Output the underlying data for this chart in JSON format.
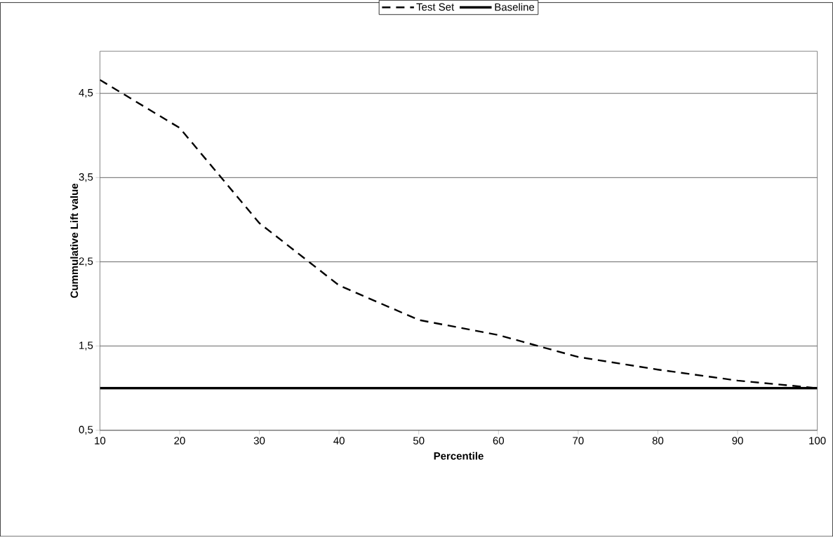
{
  "chart_data": {
    "type": "line",
    "xlabel": "Percentile",
    "ylabel": "Cummulative Lift value",
    "x": [
      10,
      20,
      30,
      40,
      50,
      60,
      70,
      80,
      90,
      100
    ],
    "series": [
      {
        "name": "Test Set",
        "color": "#000000",
        "line_style": "dashed",
        "values": [
          4.66,
          4.09,
          2.96,
          2.22,
          1.81,
          1.63,
          1.37,
          1.22,
          1.09,
          1.0
        ]
      },
      {
        "name": "Baseline",
        "color": "#000000",
        "line_style": "solid",
        "values": [
          1.0,
          1.0,
          1.0,
          1.0,
          1.0,
          1.0,
          1.0,
          1.0,
          1.0,
          1.0
        ]
      }
    ],
    "xlim": [
      10,
      100
    ],
    "xticks": [
      10,
      20,
      30,
      40,
      50,
      60,
      70,
      80,
      90,
      100
    ],
    "ylim": [
      0.5,
      5
    ],
    "yticks": [
      {
        "value": 0.5,
        "label": "0,5"
      },
      {
        "value": 1.5,
        "label": "1,5"
      },
      {
        "value": 2.5,
        "label": "2,5"
      },
      {
        "value": 3.5,
        "label": "3,5"
      },
      {
        "value": 4.5,
        "label": "4,5"
      }
    ],
    "grid": "y",
    "legend": "top",
    "marker": "none"
  }
}
